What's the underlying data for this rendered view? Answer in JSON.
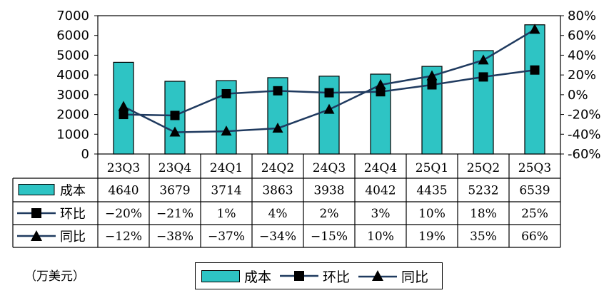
{
  "chart_data": {
    "type": "bar",
    "categories": [
      "23Q3",
      "23Q4",
      "24Q1",
      "24Q2",
      "24Q3",
      "24Q4",
      "25Q1",
      "25Q2",
      "25Q3"
    ],
    "y_left_ticks": [
      "0",
      "1000",
      "2000",
      "3000",
      "4000",
      "5000",
      "6000",
      "7000"
    ],
    "y_right_ticks": [
      "-60%",
      "-40%",
      "-20%",
      "0%",
      "20%",
      "40%",
      "60%",
      "80%"
    ],
    "ylim_left": [
      0,
      7000
    ],
    "ylim_right": [
      -60,
      80
    ],
    "series": [
      {
        "name": "成本",
        "kind": "bar",
        "axis": "left",
        "values": [
          4640,
          3679,
          3714,
          3863,
          3938,
          4042,
          4435,
          5232,
          6539
        ],
        "labels": [
          "4640",
          "3679",
          "3714",
          "3863",
          "3938",
          "4042",
          "4435",
          "5232",
          "6539"
        ]
      },
      {
        "name": "环比",
        "kind": "line",
        "marker": "square",
        "axis": "right",
        "values": [
          -20,
          -21,
          1,
          4,
          2,
          3,
          10,
          18,
          25
        ],
        "labels": [
          "−20%",
          "−21%",
          "1%",
          "4%",
          "2%",
          "3%",
          "10%",
          "18%",
          "25%"
        ]
      },
      {
        "name": "同比",
        "kind": "line",
        "marker": "triangle",
        "axis": "right",
        "values": [
          -12,
          -38,
          -37,
          -34,
          -15,
          10,
          19,
          35,
          66
        ],
        "labels": [
          "−12%",
          "−38%",
          "−37%",
          "−34%",
          "−15%",
          "10%",
          "19%",
          "35%",
          "66%"
        ]
      }
    ],
    "colors": {
      "bar": "#2ec4c4",
      "line": "#1f3a5f",
      "grid": "#000000"
    },
    "unit": "（万美元）",
    "legend": "bottom-center"
  }
}
